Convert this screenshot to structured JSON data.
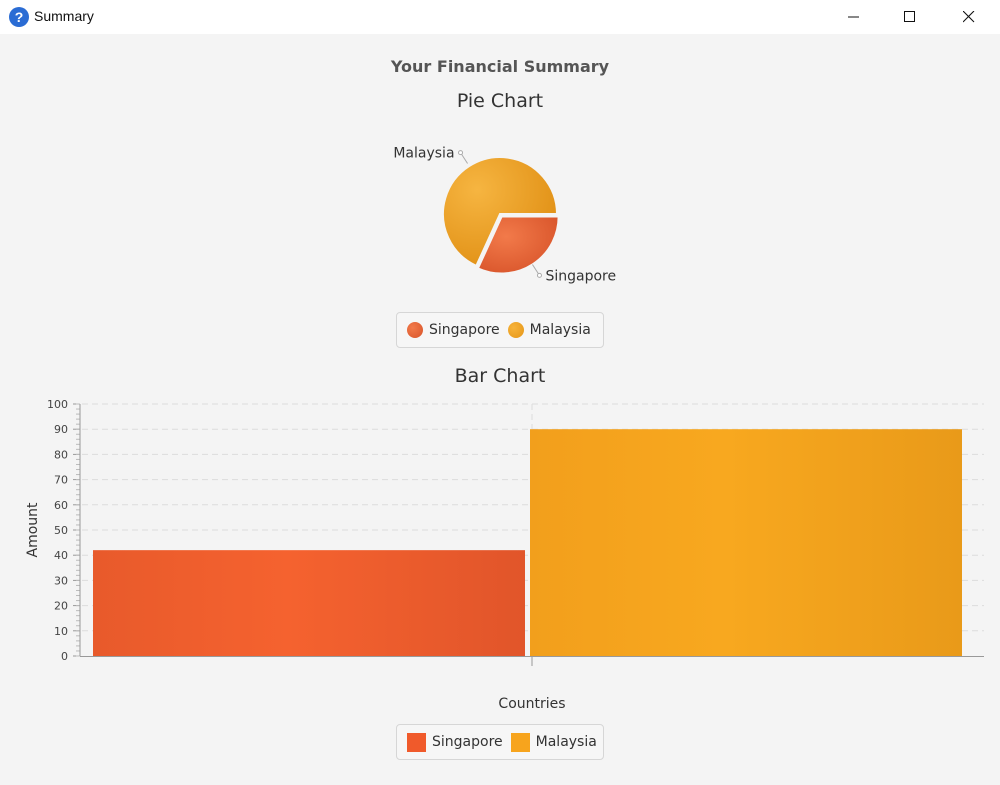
{
  "window": {
    "title": "Summary",
    "icon": "question-mark-icon",
    "controls": [
      "minimize",
      "maximize",
      "close"
    ]
  },
  "page": {
    "title": "Your Financial Summary"
  },
  "pie_chart": {
    "title": "Pie Chart",
    "legend": [
      "Singapore",
      "Malaysia"
    ],
    "labels": [
      "Malaysia",
      "Singapore"
    ]
  },
  "bar_chart": {
    "title": "Bar Chart",
    "xlabel": "Countries",
    "ylabel": "Amount",
    "legend": [
      "Singapore",
      "Malaysia"
    ]
  },
  "colors": {
    "singapore": "#f05a2b",
    "malaysia": "#f7a41d"
  },
  "chart_data": [
    {
      "type": "pie",
      "title": "Pie Chart",
      "slices": [
        {
          "label": "Singapore",
          "value": 42
        },
        {
          "label": "Malaysia",
          "value": 90
        }
      ],
      "legend_position": "bottom"
    },
    {
      "type": "bar",
      "title": "Bar Chart",
      "categories": [
        ""
      ],
      "series": [
        {
          "name": "Singapore",
          "values": [
            42
          ]
        },
        {
          "name": "Malaysia",
          "values": [
            90
          ]
        }
      ],
      "xlabel": "Countries",
      "ylabel": "Amount",
      "ylim": [
        0,
        100
      ],
      "yticks": [
        0,
        10,
        20,
        30,
        40,
        50,
        60,
        70,
        80,
        90,
        100
      ],
      "grid": true,
      "legend_position": "bottom"
    }
  ]
}
